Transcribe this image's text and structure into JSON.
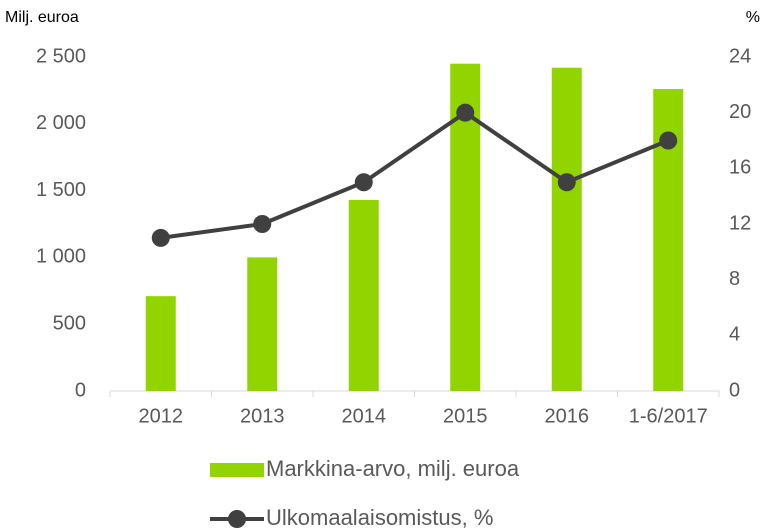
{
  "chart_data": {
    "type": "combo",
    "y_label": "Milj. euroa",
    "y2_label": "%",
    "categories": [
      "2012",
      "2013",
      "2014",
      "2015",
      "2016",
      "1-6/2017"
    ],
    "series": [
      {
        "name": "Markkina-arvo, milj. euroa",
        "type": "bar",
        "axis": "y",
        "color": "#92d400",
        "values": [
          710,
          1000,
          1430,
          2450,
          2420,
          2260
        ]
      },
      {
        "name": "Ulkomaalaisomistus, %",
        "type": "line",
        "axis": "y2",
        "color": "#404040",
        "values": [
          11,
          12,
          15,
          20,
          15,
          18
        ]
      }
    ],
    "ylim": [
      0,
      2500
    ],
    "yticks": [
      0,
      500,
      {
        "value": 1000,
        "label": "1 000"
      },
      {
        "value": 1500,
        "label": "1 500"
      },
      {
        "value": 2000,
        "label": "2 000"
      },
      {
        "value": 2500,
        "label": "2 500"
      }
    ],
    "y2lim": [
      0,
      24
    ],
    "y2ticks": [
      0,
      4,
      8,
      12,
      16,
      20,
      24
    ],
    "legend": "bottom"
  }
}
